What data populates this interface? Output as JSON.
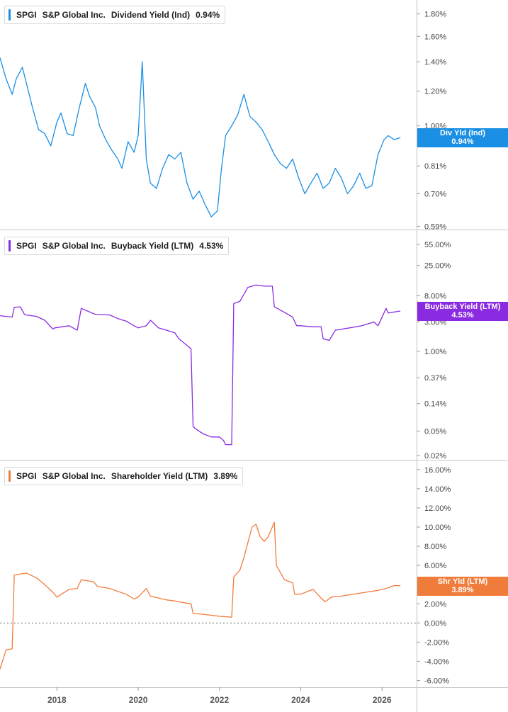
{
  "chart_data": [
    {
      "type": "line",
      "legend": {
        "ticker": "SPGI",
        "company": "S&P Global Inc.",
        "metric": "Dividend Yield (Ind)",
        "value": "0.94%"
      },
      "series": [
        {
          "name": "Div Yld (Ind)",
          "color": "#1a8fe3",
          "x": [
            2016.6,
            2016.75,
            2016.9,
            2017.0,
            2017.15,
            2017.25,
            2017.4,
            2017.55,
            2017.7,
            2017.85,
            2018.0,
            2018.1,
            2018.25,
            2018.4,
            2018.55,
            2018.7,
            2018.8,
            2018.95,
            2019.05,
            2019.2,
            2019.35,
            2019.5,
            2019.6,
            2019.75,
            2019.9,
            2020.0,
            2020.1,
            2020.2,
            2020.3,
            2020.45,
            2020.6,
            2020.75,
            2020.9,
            2021.05,
            2021.2,
            2021.35,
            2021.5,
            2021.65,
            2021.8,
            2021.95,
            2022.05,
            2022.15,
            2022.3,
            2022.45,
            2022.6,
            2022.75,
            2022.9,
            2023.05,
            2023.2,
            2023.35,
            2023.5,
            2023.65,
            2023.8,
            2023.95,
            2024.1,
            2024.25,
            2024.4,
            2024.55,
            2024.7,
            2024.85,
            2025.0,
            2025.15,
            2025.3,
            2025.45,
            2025.6,
            2025.75,
            2025.9,
            2026.05,
            2026.15,
            2026.3,
            2026.45
          ],
          "values": [
            1.43,
            1.28,
            1.18,
            1.28,
            1.36,
            1.25,
            1.1,
            0.98,
            0.96,
            0.9,
            1.02,
            1.07,
            0.96,
            0.95,
            1.1,
            1.25,
            1.17,
            1.1,
            1.0,
            0.93,
            0.88,
            0.84,
            0.8,
            0.92,
            0.87,
            0.95,
            1.4,
            0.84,
            0.74,
            0.72,
            0.8,
            0.86,
            0.84,
            0.87,
            0.74,
            0.68,
            0.71,
            0.66,
            0.62,
            0.64,
            0.8,
            0.95,
            1.0,
            1.06,
            1.18,
            1.05,
            1.02,
            0.98,
            0.92,
            0.86,
            0.82,
            0.8,
            0.84,
            0.76,
            0.7,
            0.74,
            0.78,
            0.72,
            0.74,
            0.8,
            0.76,
            0.7,
            0.73,
            0.78,
            0.72,
            0.73,
            0.86,
            0.93,
            0.95,
            0.93,
            0.94
          ]
        }
      ],
      "y_scale": "log",
      "yticks": [
        {
          "value": 1.8,
          "label": "1.80%"
        },
        {
          "value": 1.6,
          "label": "1.60%"
        },
        {
          "value": 1.4,
          "label": "1.40%"
        },
        {
          "value": 1.2,
          "label": "1.20%"
        },
        {
          "value": 1.0,
          "label": "1.00%"
        },
        {
          "value": 0.92,
          "label": "0.92%"
        },
        {
          "value": 0.81,
          "label": "0.81%"
        },
        {
          "value": 0.7,
          "label": "0.70%"
        },
        {
          "value": 0.59,
          "label": "0.59%"
        }
      ],
      "ylim": [
        0.58,
        1.88
      ],
      "last_value_tag": {
        "label": "Div Yld (Ind)",
        "value": "0.94%",
        "at": 0.94,
        "color": "#1a8fe3"
      }
    },
    {
      "type": "line",
      "legend": {
        "ticker": "SPGI",
        "company": "S&P Global Inc.",
        "metric": "Buyback Yield (LTM)",
        "value": "4.53%"
      },
      "series": [
        {
          "name": "Buyback Yield (LTM)",
          "color": "#8a2be2",
          "x": [
            2016.6,
            2016.9,
            2016.95,
            2017.1,
            2017.2,
            2017.25,
            2017.5,
            2017.7,
            2017.9,
            2017.95,
            2018.3,
            2018.5,
            2018.6,
            2018.9,
            2018.95,
            2019.3,
            2019.5,
            2019.7,
            2019.9,
            2020.0,
            2020.1,
            2020.2,
            2020.3,
            2020.5,
            2020.7,
            2020.9,
            2021.0,
            2021.3,
            2021.35,
            2021.4,
            2021.6,
            2021.8,
            2022.0,
            2022.1,
            2022.15,
            2022.3,
            2022.35,
            2022.5,
            2022.7,
            2022.9,
            2023.1,
            2023.3,
            2023.35,
            2023.6,
            2023.8,
            2023.9,
            2024.0,
            2024.3,
            2024.5,
            2024.55,
            2024.7,
            2024.85,
            2025.2,
            2025.5,
            2025.8,
            2025.9,
            2026.1,
            2026.15,
            2026.45
          ],
          "values": [
            3.8,
            3.6,
            5.2,
            5.3,
            4.0,
            3.9,
            3.7,
            3.2,
            2.3,
            2.4,
            2.6,
            2.2,
            5.0,
            4.1,
            4.0,
            3.9,
            3.4,
            3.1,
            2.6,
            2.4,
            2.5,
            2.6,
            3.2,
            2.4,
            2.2,
            2.0,
            1.6,
            1.1,
            0.06,
            0.055,
            0.045,
            0.04,
            0.04,
            0.035,
            0.03,
            0.03,
            6.0,
            6.5,
            11.0,
            12.0,
            11.5,
            11.5,
            5.3,
            4.3,
            3.6,
            2.6,
            2.6,
            2.5,
            2.5,
            1.6,
            1.5,
            2.2,
            2.4,
            2.6,
            3.0,
            2.6,
            5.0,
            4.2,
            4.53
          ]
        }
      ],
      "y_scale": "log",
      "yticks": [
        {
          "value": 55.0,
          "label": "55.00%"
        },
        {
          "value": 25.0,
          "label": "25.00%"
        },
        {
          "value": 8.0,
          "label": "8.00%"
        },
        {
          "value": 3.0,
          "label": "3.00%"
        },
        {
          "value": 1.0,
          "label": "1.00%"
        },
        {
          "value": 0.37,
          "label": "0.37%"
        },
        {
          "value": 0.14,
          "label": "0.14%"
        },
        {
          "value": 0.05,
          "label": "0.05%"
        },
        {
          "value": 0.02,
          "label": "0.02%"
        }
      ],
      "ylim": [
        0.017,
        70.0
      ],
      "last_value_tag": {
        "label": "Buyback Yield (LTM)",
        "value": "4.53%",
        "at": 4.53,
        "color": "#8a2be2"
      }
    },
    {
      "type": "line",
      "legend": {
        "ticker": "SPGI",
        "company": "S&P Global Inc.",
        "metric": "Shareholder Yield (LTM)",
        "value": "3.89%"
      },
      "series": [
        {
          "name": "Shr Yld (LTM)",
          "color": "#f07c3c",
          "x": [
            2016.6,
            2016.75,
            2016.9,
            2016.95,
            2017.25,
            2017.5,
            2017.7,
            2017.9,
            2018.0,
            2018.3,
            2018.5,
            2018.6,
            2018.9,
            2019.0,
            2019.3,
            2019.5,
            2019.7,
            2019.9,
            2020.0,
            2020.2,
            2020.3,
            2020.5,
            2020.7,
            2020.9,
            2021.0,
            2021.3,
            2021.35,
            2021.6,
            2021.8,
            2022.0,
            2022.3,
            2022.35,
            2022.5,
            2022.6,
            2022.8,
            2022.9,
            2023.0,
            2023.1,
            2023.2,
            2023.35,
            2023.4,
            2023.6,
            2023.8,
            2023.85,
            2024.0,
            2024.3,
            2024.5,
            2024.6,
            2024.75,
            2025.0,
            2025.3,
            2025.6,
            2025.9,
            2026.1,
            2026.3,
            2026.45
          ],
          "values": [
            -4.8,
            -2.8,
            -2.7,
            5.0,
            5.2,
            4.7,
            4.0,
            3.2,
            2.7,
            3.5,
            3.6,
            4.5,
            4.3,
            3.8,
            3.6,
            3.3,
            3.0,
            2.5,
            2.7,
            3.6,
            2.8,
            2.6,
            2.4,
            2.3,
            2.2,
            2.0,
            1.0,
            0.9,
            0.8,
            0.7,
            0.6,
            4.8,
            5.5,
            6.8,
            10.0,
            10.3,
            9.0,
            8.5,
            9.0,
            10.5,
            6.0,
            4.5,
            4.2,
            3.0,
            3.0,
            3.5,
            2.6,
            2.2,
            2.7,
            2.8,
            3.0,
            3.2,
            3.4,
            3.6,
            3.9,
            3.89
          ]
        }
      ],
      "y_scale": "linear",
      "yticks": [
        {
          "value": 16,
          "label": "16.00%"
        },
        {
          "value": 14,
          "label": "14.00%"
        },
        {
          "value": 12,
          "label": "12.00%"
        },
        {
          "value": 10,
          "label": "10.00%"
        },
        {
          "value": 8,
          "label": "8.00%"
        },
        {
          "value": 6,
          "label": "6.00%"
        },
        {
          "value": 4,
          "label": "4.00%"
        },
        {
          "value": 2,
          "label": "2.00%"
        },
        {
          "value": 0,
          "label": "0.00%"
        },
        {
          "value": -2,
          "label": "-2.00%"
        },
        {
          "value": -4,
          "label": "-4.00%"
        },
        {
          "value": -6,
          "label": "-6.00%"
        }
      ],
      "ylim": [
        -6.7,
        16.5
      ],
      "zero_line": true,
      "last_value_tag": {
        "label": "Shr Yld (LTM)",
        "value": "3.89%",
        "at": 3.89,
        "color": "#f07c3c"
      }
    }
  ],
  "x_axis": {
    "xlim": [
      2016.6,
      2026.85
    ],
    "ticks": [
      {
        "value": 2018,
        "label": "2018"
      },
      {
        "value": 2020,
        "label": "2020"
      },
      {
        "value": 2022,
        "label": "2022"
      },
      {
        "value": 2024,
        "label": "2024"
      },
      {
        "value": 2026,
        "label": "2026"
      }
    ]
  }
}
